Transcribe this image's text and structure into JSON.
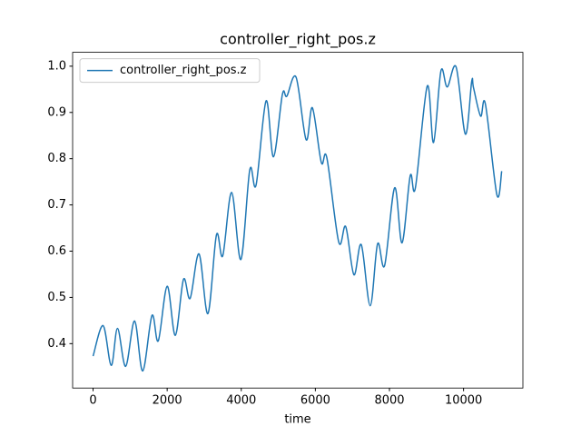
{
  "chart_data": {
    "type": "line",
    "title": "controller_right_pos.z",
    "x_label": "time",
    "x": [
      0,
      270,
      490,
      660,
      880,
      1120,
      1340,
      1590,
      1760,
      2000,
      2220,
      2440,
      2620,
      2860,
      3100,
      3330,
      3500,
      3740,
      3990,
      4230,
      4400,
      4670,
      4870,
      5110,
      5230,
      5480,
      5750,
      5920,
      6160,
      6310,
      6630,
      6820,
      7040,
      7240,
      7480,
      7680,
      7870,
      8140,
      8340,
      8560,
      8700,
      9020,
      9190,
      9390,
      9560,
      9800,
      10050,
      10220,
      10270,
      10460,
      10590,
      10900,
      11030
    ],
    "series": [
      {
        "name": "controller_right_pos.z",
        "color": "#1f77b4",
        "values": [
          0.373,
          0.439,
          0.353,
          0.433,
          0.351,
          0.449,
          0.341,
          0.461,
          0.406,
          0.524,
          0.418,
          0.539,
          0.498,
          0.594,
          0.465,
          0.635,
          0.59,
          0.727,
          0.582,
          0.776,
          0.743,
          0.925,
          0.804,
          0.939,
          0.935,
          0.976,
          0.841,
          0.91,
          0.792,
          0.802,
          0.62,
          0.653,
          0.549,
          0.614,
          0.482,
          0.616,
          0.569,
          0.737,
          0.618,
          0.763,
          0.737,
          0.957,
          0.835,
          0.99,
          0.955,
          0.998,
          0.853,
          0.967,
          0.953,
          0.892,
          0.918,
          0.722,
          0.773
        ]
      }
    ],
    "xlim": [
      -552,
      11602
    ],
    "ylim": [
      0.304,
      1.03
    ],
    "xticks": [
      0,
      2000,
      4000,
      6000,
      8000,
      10000
    ],
    "yticks": [
      0.4,
      0.5,
      0.6,
      0.7,
      0.8,
      0.9,
      {
        "value": 1,
        "label": "1.0"
      }
    ],
    "legend": "upper left"
  }
}
